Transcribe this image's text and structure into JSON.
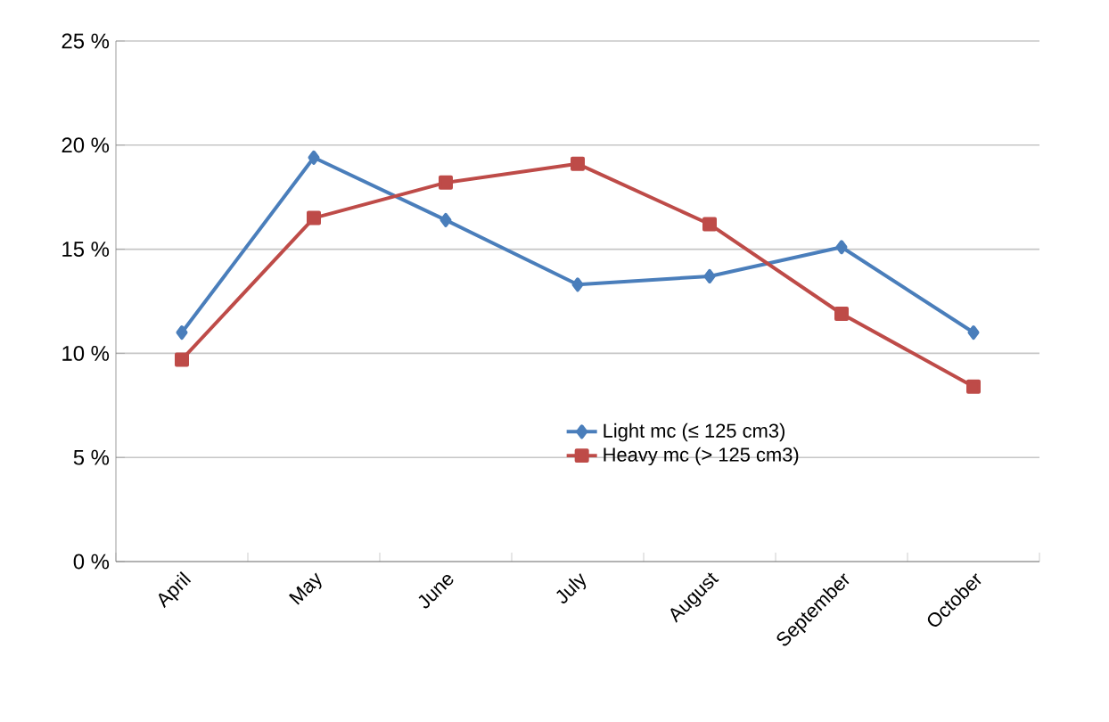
{
  "chart_data": {
    "type": "line",
    "categories": [
      "April",
      "May",
      "June",
      "July",
      "August",
      "September",
      "October"
    ],
    "series": [
      {
        "name": "Light mc (≤ 125 cm3)",
        "color": "#4a7ebb",
        "marker": "diamond",
        "values": [
          11.0,
          19.4,
          16.4,
          13.3,
          13.7,
          15.1,
          11.0
        ]
      },
      {
        "name": "Heavy mc (> 125 cm3)",
        "color": "#be4b48",
        "marker": "square",
        "values": [
          9.7,
          16.5,
          18.2,
          19.1,
          16.2,
          11.9,
          8.4
        ]
      }
    ],
    "ylim": [
      0,
      25
    ],
    "yticks": [
      {
        "value": 0,
        "label": "0 %"
      },
      {
        "value": 5,
        "label": "5 %"
      },
      {
        "value": 10,
        "label": "10 %"
      },
      {
        "value": 15,
        "label": "15 %"
      },
      {
        "value": 20,
        "label": "20 %"
      },
      {
        "value": 25,
        "label": "25 %"
      }
    ],
    "grid": "y",
    "legend": "bottom right",
    "line_style": "solid"
  }
}
